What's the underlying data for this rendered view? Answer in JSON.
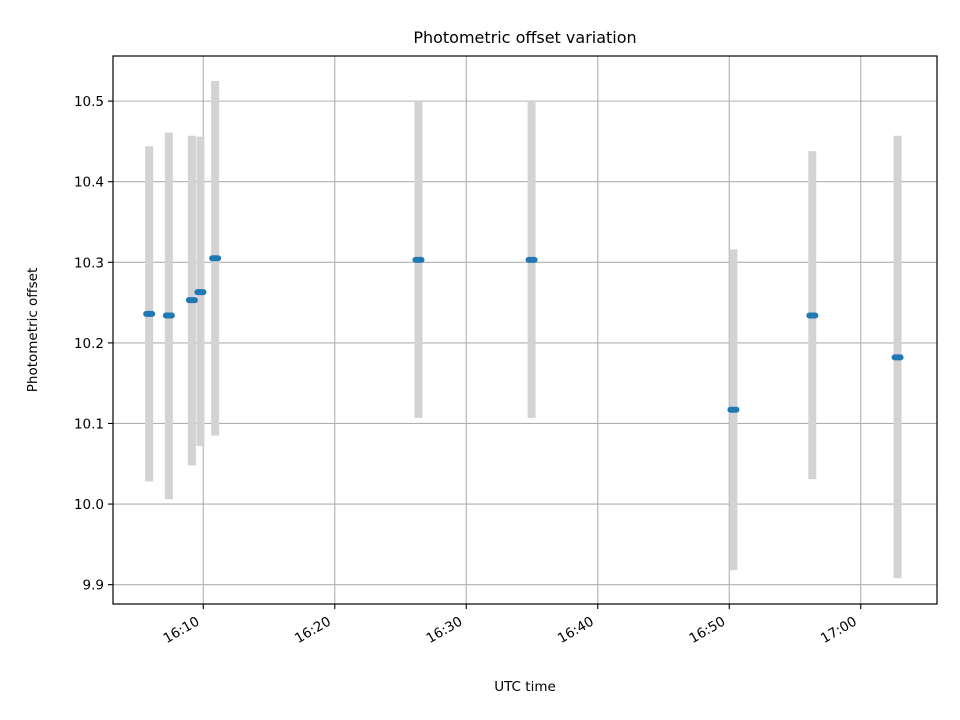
{
  "chart_data": {
    "type": "scatter",
    "title": "Photometric offset variation",
    "xlabel": "UTC time",
    "ylabel": "Photometric offset",
    "xlim": [
      "16:03:08",
      "17:05:48"
    ],
    "ylim": [
      9.876,
      10.556
    ],
    "grid": true,
    "x_ticks": [
      "16:10",
      "16:20",
      "16:30",
      "16:40",
      "16:50",
      "17:00"
    ],
    "y_ticks": [
      "9.9",
      "10.0",
      "10.1",
      "10.2",
      "10.3",
      "10.4",
      "10.5"
    ],
    "points": [
      {
        "x": "16:05:53",
        "y": 10.236,
        "err_low": 10.028,
        "err_high": 10.444
      },
      {
        "x": "16:07:23",
        "y": 10.234,
        "err_low": 10.006,
        "err_high": 10.461
      },
      {
        "x": "16:09:08",
        "y": 10.253,
        "err_low": 10.048,
        "err_high": 10.457
      },
      {
        "x": "16:09:47",
        "y": 10.263,
        "err_low": 10.072,
        "err_high": 10.456
      },
      {
        "x": "16:10:54",
        "y": 10.305,
        "err_low": 10.085,
        "err_high": 10.525
      },
      {
        "x": "16:26:22",
        "y": 10.303,
        "err_low": 10.107,
        "err_high": 10.5
      },
      {
        "x": "16:34:58",
        "y": 10.303,
        "err_low": 10.107,
        "err_high": 10.5
      },
      {
        "x": "16:50:19",
        "y": 10.117,
        "err_low": 9.918,
        "err_high": 10.316
      },
      {
        "x": "16:56:19",
        "y": 10.234,
        "err_low": 10.031,
        "err_high": 10.438
      },
      {
        "x": "17:02:48",
        "y": 10.182,
        "err_low": 9.908,
        "err_high": 10.457
      }
    ],
    "colors": {
      "marker": "#1f77b4",
      "errorbar": "#d3d3d3",
      "grid": "#b0b0b0",
      "axes": "#000000"
    }
  }
}
